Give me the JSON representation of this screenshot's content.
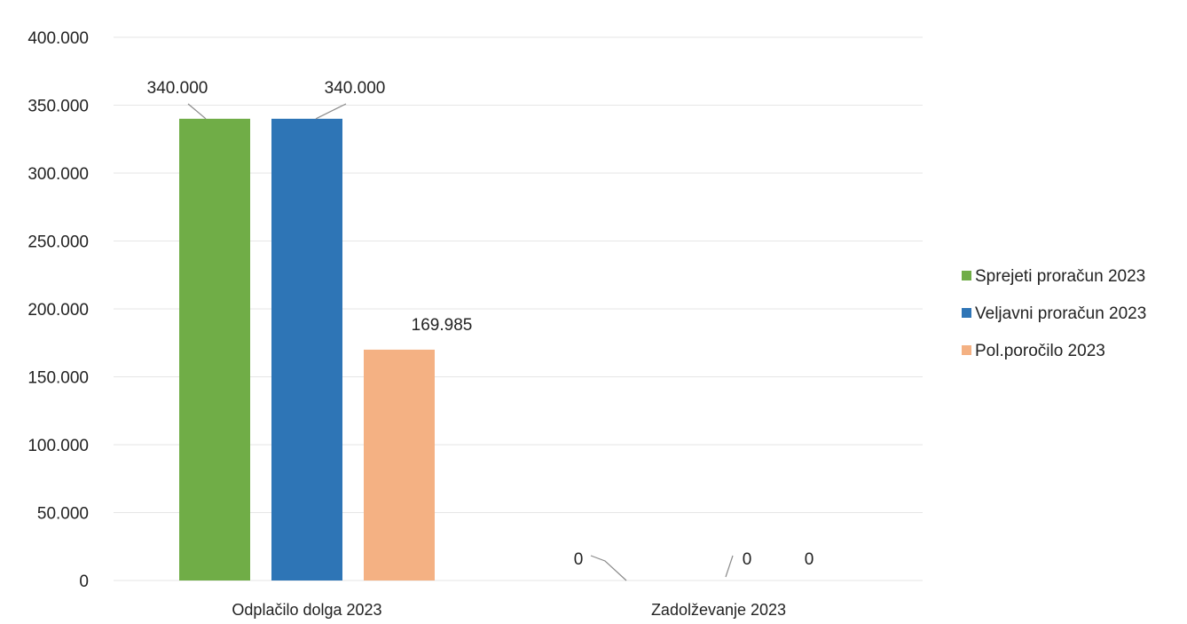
{
  "chart_data": {
    "type": "bar",
    "categories": [
      "Odplačilo dolga 2023",
      "Zadolževanje 2023"
    ],
    "series": [
      {
        "name": "Sprejeti proračun 2023",
        "color": "#70AD47",
        "values": [
          340000,
          0
        ],
        "labels": [
          "340.000",
          "0"
        ]
      },
      {
        "name": "Veljavni proračun 2023",
        "color": "#2E75B6",
        "values": [
          340000,
          0
        ],
        "labels": [
          "340.000",
          "0"
        ]
      },
      {
        "name": "Pol.poročilo 2023",
        "color": "#F4B183",
        "values": [
          169985,
          0
        ],
        "labels": [
          "169.985",
          "0"
        ]
      }
    ],
    "y_ticks": [
      "0",
      "50.000",
      "100.000",
      "150.000",
      "200.000",
      "250.000",
      "300.000",
      "350.000",
      "400.000"
    ],
    "ylim": [
      0,
      400000
    ],
    "grid": true,
    "legend_position": "right"
  }
}
